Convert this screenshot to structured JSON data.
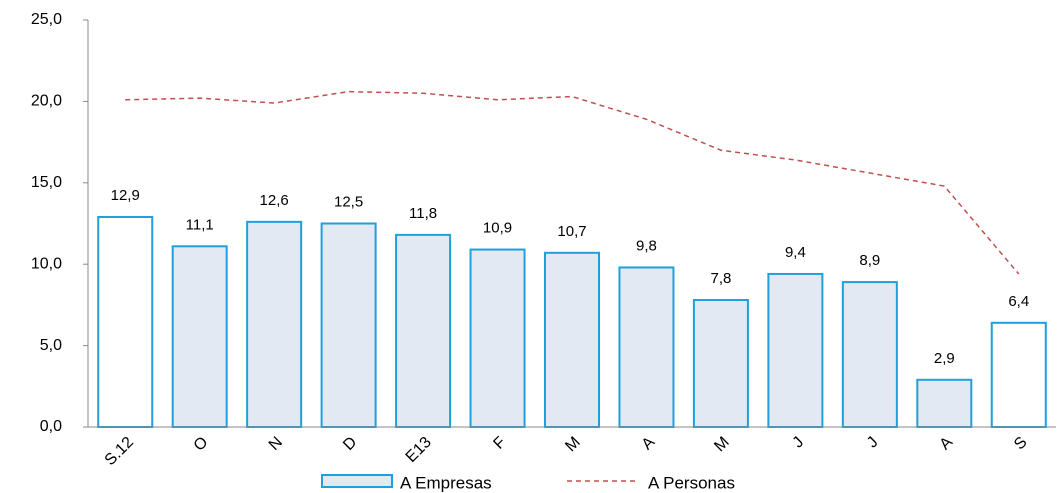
{
  "chart_data": {
    "type": "bar",
    "categories": [
      "S.12",
      "O",
      "N",
      "D",
      "E13",
      "F",
      "M",
      "A",
      "M",
      "J",
      "J",
      "A",
      "S"
    ],
    "series": [
      {
        "name": "A Empresas",
        "type": "bar",
        "color": "#1fa0dc",
        "colors": [
          "#ffffff",
          "#e3e9f3",
          "#e3e9f3",
          "#e3e9f3",
          "#e3e9f3",
          "#e3e9f3",
          "#e3e9f3",
          "#e3e9f3",
          "#e3e9f3",
          "#e3e9f3",
          "#e3e9f3",
          "#e3e9f3",
          "#ffffff"
        ],
        "values": [
          12.9,
          11.1,
          12.6,
          12.5,
          11.8,
          10.9,
          10.7,
          9.8,
          7.8,
          9.4,
          8.9,
          2.9,
          6.4
        ],
        "value_labels": [
          "12,9",
          "11,1",
          "12,6",
          "12,5",
          "11,8",
          "10,9",
          "10,7",
          "9,8",
          "7,8",
          "9,4",
          "8,9",
          "2,9",
          "6,4"
        ]
      },
      {
        "name": "A Personas",
        "type": "line",
        "color": "#c0504d",
        "values": [
          20.1,
          20.2,
          19.9,
          20.6,
          20.5,
          20.1,
          20.3,
          18.9,
          17.0,
          16.4,
          15.6,
          14.8,
          9.4
        ]
      }
    ],
    "ylim": [
      0,
      25
    ],
    "yticks": [
      {
        "value": 0,
        "label": "0,0"
      },
      {
        "value": 5,
        "label": "5,0"
      },
      {
        "value": 10,
        "label": "10,0"
      },
      {
        "value": 15,
        "label": "15,0"
      },
      {
        "value": 20,
        "label": "20,0"
      },
      {
        "value": 25,
        "label": "25,0"
      }
    ]
  }
}
